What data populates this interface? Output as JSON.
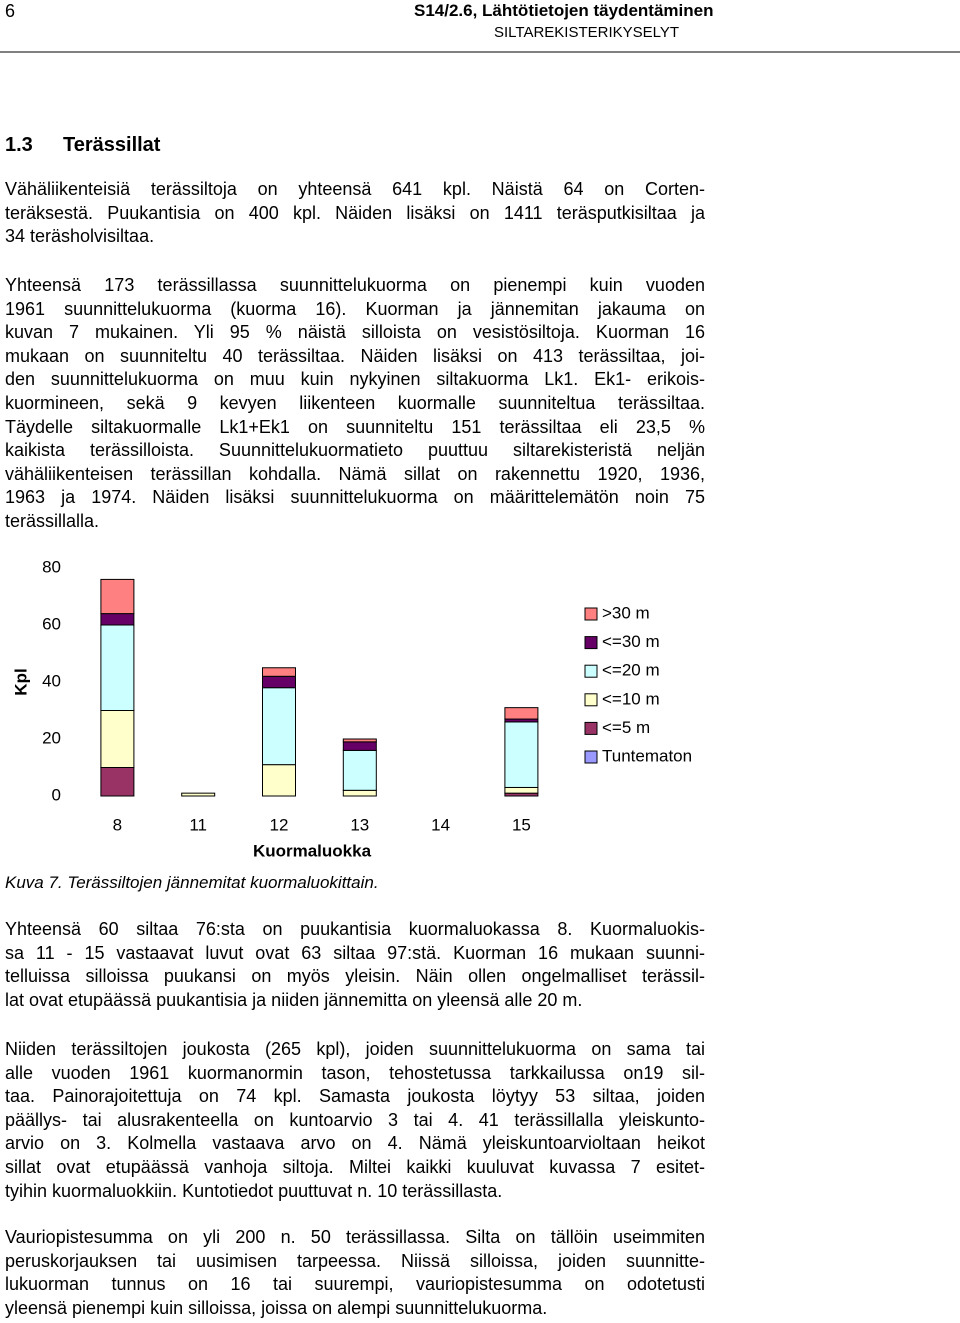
{
  "header": {
    "page_number": "6",
    "title": "S14/2.6, Lähtötietojen täydentäminen",
    "subtitle": "SILTAREKISTERIKYSELYT"
  },
  "section": {
    "number": "1.3",
    "title": "Terässillat"
  },
  "paragraphs_before": [
    [
      "Vähäliikenteisiä terässiltoja on yhteensä 641 kpl. Näistä 64 on Corten-",
      "teräksestä. Puukantisia on 400 kpl. Näiden lisäksi on 1411 teräsputkisiltaa ja",
      "34 teräsholvisiltaa."
    ],
    [
      "Yhteensä 173 terässillassa suunnittelukuorma on pienempi kuin vuoden",
      "1961 suunnittelukuorma (kuorma 16). Kuorman ja jännemitan jakauma on",
      "kuvan 7 mukainen. Yli 95 % näistä silloista on vesistösiltoja. Kuorman 16",
      "mukaan on suunniteltu 40 terässiltaa. Näiden lisäksi on 413 terässiltaa, joi-",
      "den suunnittelukuorma on muu kuin nykyinen siltakuorma Lk1. Ek1- erikois-",
      "kuormineen, sekä 9 kevyen liikenteen kuormalle suunniteltua terässiltaa.",
      "Täydelle siltakuormalle Lk1+Ek1 on suunniteltu 151 terässiltaa eli 23,5 %",
      "kaikista terässilloista. Suunnittelukuormatieto puuttuu siltarekisteristä neljän",
      "vähäliikenteisen terässillan kohdalla. Nämä sillat on rakennettu 1920, 1936,",
      "1963 ja 1974. Näiden lisäksi suunnittelukuorma on määrittelemätön noin 75",
      "terässillalla."
    ]
  ],
  "chart_data": {
    "type": "stacked_bar",
    "categories": [
      "8",
      "11",
      "12",
      "13",
      "14",
      "15"
    ],
    "series": [
      {
        "name": "Tuntematon",
        "color": "#9999ff",
        "values": [
          0,
          0,
          0,
          0,
          0,
          0
        ]
      },
      {
        "name": "<=5 m",
        "color": "#993366",
        "values": [
          10,
          0,
          0,
          0,
          0,
          1
        ]
      },
      {
        "name": "<=10 m",
        "color": "#ffffcc",
        "values": [
          20,
          1,
          11,
          2,
          0,
          2
        ]
      },
      {
        "name": "<=20 m",
        "color": "#ccffff",
        "values": [
          30,
          0,
          27,
          14,
          0,
          23
        ]
      },
      {
        "name": "<=30 m",
        "color": "#660066",
        "values": [
          4,
          0,
          4,
          3,
          0,
          1
        ]
      },
      {
        "name": ">30 m",
        "color": "#ff8080",
        "values": [
          12,
          0,
          3,
          1,
          0,
          4
        ]
      }
    ],
    "ylim": [
      0,
      80
    ],
    "yticks": [
      0,
      20,
      40,
      60,
      80
    ],
    "ylabel": "Kpl",
    "xlabel": "Kuormaluokka",
    "legend": "right"
  },
  "caption": "Kuva 7. Terässiltojen jännemitat kuormaluokittain.",
  "paragraphs_after": [
    [
      "Yhteensä 60 siltaa 76:sta on puukantisia kuormaluokassa 8. Kuormaluokis-",
      "sa 11 - 15 vastaavat luvut ovat 63 siltaa 97:stä. Kuorman 16 mukaan suunni-",
      "telluissa silloissa puukansi on myös yleisin. Näin ollen ongelmalliset terässil-",
      "lat ovat etupäässä puukantisia ja niiden jännemitta on yleensä alle 20 m."
    ],
    [
      "Niiden terässiltojen joukosta (265 kpl), joiden suunnittelukuorma on sama tai",
      "alle vuoden 1961 kuormanormin tason, tehostetussa tarkkailussa on19 sil-",
      "taa. Painorajoitettuja on 74 kpl. Samasta joukosta löytyy 53 siltaa, joiden",
      "päällys- tai alusrakenteella on kuntoarvio 3 tai 4. 41 terässillalla yleiskunto-",
      "arvio on 3. Kolmella vastaava arvo on 4. Nämä yleiskuntoarvioltaan heikot",
      "sillat ovat etupäässä vanhoja siltoja. Miltei kaikki kuuluvat kuvassa 7 esitet-",
      "tyihin kuormaluokkiin. Kuntotiedot puuttuvat n. 10 terässillasta."
    ],
    [
      "Vauriopistesumma on yli 200 n. 50 terässillassa. Silta on tällöin useimmiten",
      "peruskorjauksen tai uusimisen tarpeessa. Niissä silloissa, joiden suunnitte-",
      "lukuorman tunnus on 16 tai suurempi, vauriopistesumma on odotetusti",
      "yleensä pienempi kuin silloissa, joissa on alempi suunnittelukuorma."
    ]
  ]
}
